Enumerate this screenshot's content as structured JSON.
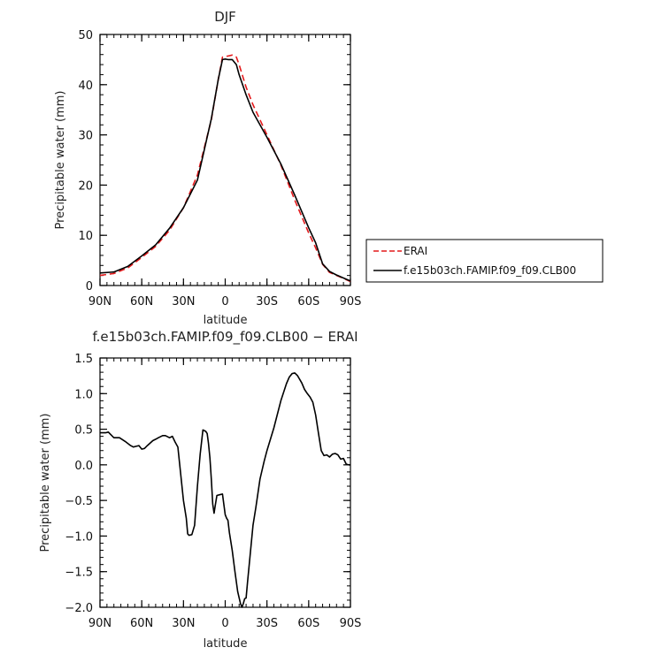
{
  "chart_data": [
    {
      "type": "line",
      "title": "DJF",
      "xlabel": "latitude",
      "ylabel": "Precipitable water (mm)",
      "xlim": [
        -90,
        90
      ],
      "ylim": [
        0,
        50
      ],
      "x_tick_values": [
        -90,
        -60,
        -30,
        0,
        30,
        60,
        90
      ],
      "x_tick_labels": [
        "90N",
        "60N",
        "30N",
        "0",
        "30S",
        "60S",
        "90S"
      ],
      "y_ticks": [
        0,
        10,
        20,
        30,
        40,
        50
      ],
      "legend": "right",
      "series": [
        {
          "name": "ERAI",
          "color": "#e41a1c",
          "dash": "dashed",
          "x": [
            -90,
            -80,
            -70,
            -60,
            -50,
            -40,
            -30,
            -20,
            -10,
            -5,
            -2,
            0,
            2,
            5,
            8,
            10,
            15,
            20,
            30,
            40,
            50,
            60,
            65,
            70,
            75,
            80,
            85,
            90
          ],
          "y": [
            2.0,
            2.4,
            3.5,
            5.6,
            7.8,
            11.0,
            15.5,
            22.0,
            33.0,
            41.0,
            45.5,
            45.6,
            45.7,
            45.9,
            45.5,
            44.0,
            39.5,
            36.0,
            30.0,
            24.0,
            17.0,
            10.5,
            7.5,
            4.2,
            2.6,
            2.0,
            1.4,
            0.8
          ]
        },
        {
          "name": "f.e15b03ch.FAMIP.f09_f09.CLB00",
          "color": "#000000",
          "dash": "solid",
          "x": [
            -90,
            -80,
            -70,
            -60,
            -50,
            -40,
            -30,
            -20,
            -10,
            -5,
            -2,
            0,
            2,
            5,
            8,
            10,
            15,
            20,
            30,
            40,
            50,
            60,
            65,
            70,
            75,
            80,
            85,
            90
          ],
          "y": [
            2.5,
            2.7,
            3.8,
            5.9,
            8.1,
            11.4,
            15.5,
            21.0,
            33.2,
            41.0,
            45.0,
            45.1,
            45.0,
            45.0,
            44.0,
            42.0,
            38.0,
            34.5,
            29.5,
            24.2,
            18.0,
            11.5,
            8.5,
            4.3,
            2.8,
            2.1,
            1.5,
            0.9
          ]
        }
      ]
    },
    {
      "type": "line",
      "title": "f.e15b03ch.FAMIP.f09_f09.CLB00 − ERAI",
      "xlabel": "latitude",
      "ylabel": "Precipitable water (mm)",
      "xlim": [
        -90,
        90
      ],
      "ylim": [
        -2.0,
        1.5
      ],
      "x_tick_values": [
        -90,
        -60,
        -30,
        0,
        30,
        60,
        90
      ],
      "x_tick_labels": [
        "90N",
        "60N",
        "30N",
        "0",
        "30S",
        "60S",
        "90S"
      ],
      "y_ticks": [
        -2.0,
        -1.5,
        -1.0,
        -0.5,
        0.0,
        0.5,
        1.0,
        1.5
      ],
      "y_tick_labels": [
        "−2.0",
        "−1.5",
        "−1.0",
        "−0.5",
        "0.0",
        "0.5",
        "1.0",
        "1.5"
      ],
      "series": [
        {
          "color": "#000000",
          "dash": "solid",
          "x": [
            -90,
            -86,
            -84,
            -80,
            -76,
            -72,
            -68,
            -66,
            -64,
            -62,
            -60,
            -58,
            -56,
            -52,
            -50,
            -48,
            -45,
            -43,
            -40,
            -38,
            -36,
            -34,
            -30,
            -28,
            -27,
            -26,
            -24,
            -22,
            -20,
            -18,
            -16,
            -14,
            -13,
            -12,
            -11,
            -10,
            -9,
            -8,
            -7,
            -6,
            -4,
            -2,
            0,
            1,
            2,
            3,
            5,
            7,
            9,
            11,
            12,
            13,
            14,
            15,
            16,
            18,
            20,
            22,
            25,
            28,
            30,
            35,
            40,
            44,
            46,
            48,
            50,
            52,
            55,
            57,
            59,
            61,
            63,
            65,
            67,
            69,
            71,
            73,
            75,
            77,
            79,
            81,
            83,
            85,
            87,
            89,
            90
          ],
          "y": [
            0.45,
            0.45,
            0.46,
            0.38,
            0.38,
            0.33,
            0.27,
            0.25,
            0.26,
            0.27,
            0.22,
            0.23,
            0.27,
            0.34,
            0.36,
            0.38,
            0.41,
            0.41,
            0.38,
            0.4,
            0.32,
            0.25,
            -0.5,
            -0.75,
            -0.97,
            -0.99,
            -0.98,
            -0.85,
            -0.3,
            0.15,
            0.49,
            0.47,
            0.44,
            0.3,
            0.1,
            -0.2,
            -0.55,
            -0.68,
            -0.55,
            -0.43,
            -0.42,
            -0.41,
            -0.7,
            -0.75,
            -0.78,
            -0.95,
            -1.2,
            -1.5,
            -1.78,
            -1.95,
            -2.0,
            -1.95,
            -1.88,
            -1.87,
            -1.65,
            -1.25,
            -0.85,
            -0.6,
            -0.2,
            0.05,
            0.2,
            0.52,
            0.9,
            1.14,
            1.23,
            1.28,
            1.29,
            1.25,
            1.15,
            1.06,
            1.0,
            0.95,
            0.88,
            0.7,
            0.45,
            0.2,
            0.13,
            0.14,
            0.11,
            0.15,
            0.16,
            0.14,
            0.08,
            0.09,
            0.01,
            0.0,
            0.0
          ]
        }
      ]
    }
  ]
}
